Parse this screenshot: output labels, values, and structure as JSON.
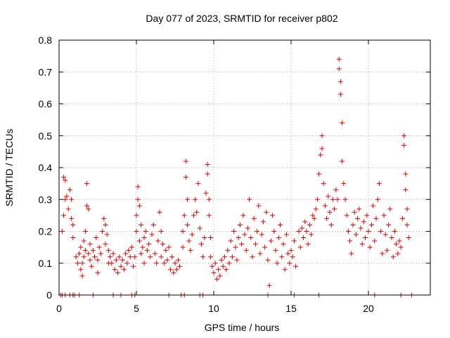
{
  "chart_data": {
    "type": "scatter",
    "title": "Day 077 of 2023, SRMTID for receiver p802",
    "xlabel": "GPS time / hours",
    "ylabel": "SRMTID / TECUs",
    "xlim": [
      0,
      24
    ],
    "ylim": [
      0,
      0.8
    ],
    "xticks": [
      0,
      5,
      10,
      15,
      20
    ],
    "xtick_labels": [
      "0",
      "5",
      "10",
      "15",
      "20"
    ],
    "yticks": [
      0,
      0.1,
      0.2,
      0.3,
      0.4,
      0.5,
      0.6,
      0.7,
      0.8
    ],
    "ytick_labels": [
      "0",
      "0.1",
      "0.2",
      "0.3",
      "0.4",
      "0.5",
      "0.6",
      "0.7",
      "0.8"
    ],
    "grid": true,
    "marker": "+",
    "marker_color": "#e00000",
    "series": [
      {
        "name": "SRMTID",
        "points": [
          [
            0.1,
            0.0
          ],
          [
            0.2,
            0.0
          ],
          [
            0.4,
            0.0
          ],
          [
            0.7,
            0.0
          ],
          [
            0.9,
            0.0
          ],
          [
            1.0,
            0.0
          ],
          [
            1.3,
            0.0
          ],
          [
            2.2,
            0.0
          ],
          [
            3.5,
            0.0
          ],
          [
            4.0,
            0.0
          ],
          [
            4.7,
            0.0
          ],
          [
            4.9,
            0.0
          ],
          [
            7.1,
            0.0
          ],
          [
            7.9,
            0.0
          ],
          [
            8.1,
            0.0
          ],
          [
            9.1,
            0.0
          ],
          [
            9.3,
            0.0
          ],
          [
            13.5,
            0.0
          ],
          [
            15.2,
            0.0
          ],
          [
            16.8,
            0.0
          ],
          [
            20.4,
            0.0
          ],
          [
            22.1,
            0.0
          ],
          [
            22.8,
            0.0
          ],
          [
            0.2,
            0.2
          ],
          [
            0.3,
            0.25
          ],
          [
            0.3,
            0.37
          ],
          [
            0.4,
            0.36
          ],
          [
            0.4,
            0.3
          ],
          [
            0.5,
            0.31
          ],
          [
            0.6,
            0.27
          ],
          [
            0.7,
            0.33
          ],
          [
            0.8,
            0.3
          ],
          [
            0.8,
            0.24
          ],
          [
            0.9,
            0.22
          ],
          [
            0.9,
            0.18
          ],
          [
            1.1,
            0.12
          ],
          [
            1.2,
            0.1
          ],
          [
            1.3,
            0.13
          ],
          [
            1.4,
            0.15
          ],
          [
            1.4,
            0.08
          ],
          [
            1.5,
            0.1
          ],
          [
            1.5,
            0.06
          ],
          [
            1.6,
            0.12
          ],
          [
            1.6,
            0.17
          ],
          [
            1.7,
            0.2
          ],
          [
            1.7,
            0.14
          ],
          [
            1.8,
            0.28
          ],
          [
            1.8,
            0.35
          ],
          [
            1.9,
            0.27
          ],
          [
            1.9,
            0.13
          ],
          [
            2.0,
            0.11
          ],
          [
            2.0,
            0.16
          ],
          [
            2.1,
            0.09
          ],
          [
            2.2,
            0.14
          ],
          [
            2.3,
            0.12
          ],
          [
            2.4,
            0.18
          ],
          [
            2.5,
            0.11
          ],
          [
            2.5,
            0.07
          ],
          [
            2.6,
            0.15
          ],
          [
            2.7,
            0.13
          ],
          [
            2.8,
            0.2
          ],
          [
            2.9,
            0.24
          ],
          [
            3.0,
            0.22
          ],
          [
            3.0,
            0.16
          ],
          [
            3.1,
            0.19
          ],
          [
            3.2,
            0.14
          ],
          [
            3.2,
            0.1
          ],
          [
            3.3,
            0.12
          ],
          [
            3.4,
            0.1
          ],
          [
            3.5,
            0.13
          ],
          [
            3.6,
            0.08
          ],
          [
            3.7,
            0.11
          ],
          [
            3.8,
            0.07
          ],
          [
            3.9,
            0.12
          ],
          [
            4.0,
            0.09
          ],
          [
            4.1,
            0.11
          ],
          [
            4.2,
            0.08
          ],
          [
            4.3,
            0.13
          ],
          [
            4.4,
            0.1
          ],
          [
            4.5,
            0.14
          ],
          [
            4.6,
            0.12
          ],
          [
            4.7,
            0.15
          ],
          [
            4.8,
            0.09
          ],
          [
            4.9,
            0.12
          ],
          [
            5.0,
            0.2
          ],
          [
            5.0,
            0.25
          ],
          [
            5.1,
            0.3
          ],
          [
            5.1,
            0.34
          ],
          [
            5.2,
            0.28
          ],
          [
            5.2,
            0.17
          ],
          [
            5.3,
            0.22
          ],
          [
            5.3,
            0.13
          ],
          [
            5.4,
            0.15
          ],
          [
            5.5,
            0.18
          ],
          [
            5.5,
            0.1
          ],
          [
            5.6,
            0.2
          ],
          [
            5.7,
            0.14
          ],
          [
            5.8,
            0.16
          ],
          [
            5.9,
            0.12
          ],
          [
            6.0,
            0.19
          ],
          [
            6.1,
            0.22
          ],
          [
            6.2,
            0.13
          ],
          [
            6.3,
            0.1
          ],
          [
            6.4,
            0.17
          ],
          [
            6.5,
            0.26
          ],
          [
            6.6,
            0.2
          ],
          [
            6.6,
            0.12
          ],
          [
            6.7,
            0.16
          ],
          [
            6.8,
            0.1
          ],
          [
            6.9,
            0.14
          ],
          [
            7.0,
            0.11
          ],
          [
            7.1,
            0.15
          ],
          [
            7.2,
            0.08
          ],
          [
            7.3,
            0.12
          ],
          [
            7.4,
            0.07
          ],
          [
            7.5,
            0.1
          ],
          [
            7.6,
            0.08
          ],
          [
            7.7,
            0.11
          ],
          [
            7.8,
            0.09
          ],
          [
            8.0,
            0.15
          ],
          [
            8.0,
            0.2
          ],
          [
            8.1,
            0.25
          ],
          [
            8.2,
            0.42
          ],
          [
            8.2,
            0.37
          ],
          [
            8.3,
            0.3
          ],
          [
            8.3,
            0.22
          ],
          [
            8.4,
            0.17
          ],
          [
            8.5,
            0.14
          ],
          [
            8.6,
            0.19
          ],
          [
            8.7,
            0.25
          ],
          [
            8.8,
            0.3
          ],
          [
            8.9,
            0.26
          ],
          [
            9.0,
            0.35
          ],
          [
            9.1,
            0.21
          ],
          [
            9.2,
            0.16
          ],
          [
            9.3,
            0.12
          ],
          [
            9.4,
            0.18
          ],
          [
            9.5,
            0.32
          ],
          [
            9.6,
            0.41
          ],
          [
            9.6,
            0.38
          ],
          [
            9.7,
            0.3
          ],
          [
            9.7,
            0.25
          ],
          [
            9.8,
            0.18
          ],
          [
            9.8,
            0.12
          ],
          [
            9.9,
            0.09
          ],
          [
            10.0,
            0.07
          ],
          [
            10.1,
            0.1
          ],
          [
            10.2,
            0.05
          ],
          [
            10.3,
            0.08
          ],
          [
            10.4,
            0.06
          ],
          [
            10.5,
            0.11
          ],
          [
            10.6,
            0.09
          ],
          [
            10.7,
            0.12
          ],
          [
            10.8,
            0.08
          ],
          [
            10.9,
            0.14
          ],
          [
            11.0,
            0.1
          ],
          [
            11.1,
            0.17
          ],
          [
            11.2,
            0.12
          ],
          [
            11.3,
            0.2
          ],
          [
            11.4,
            0.15
          ],
          [
            11.5,
            0.11
          ],
          [
            11.6,
            0.18
          ],
          [
            11.7,
            0.22
          ],
          [
            11.8,
            0.16
          ],
          [
            11.9,
            0.25
          ],
          [
            12.0,
            0.19
          ],
          [
            12.1,
            0.14
          ],
          [
            12.2,
            0.21
          ],
          [
            12.3,
            0.3
          ],
          [
            12.4,
            0.18
          ],
          [
            12.5,
            0.12
          ],
          [
            12.6,
            0.24
          ],
          [
            12.7,
            0.16
          ],
          [
            12.8,
            0.2
          ],
          [
            12.9,
            0.28
          ],
          [
            13.0,
            0.13
          ],
          [
            13.1,
            0.19
          ],
          [
            13.2,
            0.23
          ],
          [
            13.3,
            0.15
          ],
          [
            13.4,
            0.26
          ],
          [
            13.5,
            0.11
          ],
          [
            13.6,
            0.03
          ],
          [
            13.7,
            0.17
          ],
          [
            13.8,
            0.25
          ],
          [
            13.9,
            0.2
          ],
          [
            14.0,
            0.14
          ],
          [
            14.1,
            0.1
          ],
          [
            14.2,
            0.18
          ],
          [
            14.3,
            0.22
          ],
          [
            14.4,
            0.12
          ],
          [
            14.5,
            0.16
          ],
          [
            14.6,
            0.08
          ],
          [
            14.7,
            0.19
          ],
          [
            14.8,
            0.13
          ],
          [
            14.9,
            0.1
          ],
          [
            15.0,
            0.14
          ],
          [
            15.1,
            0.12
          ],
          [
            15.2,
            0.17
          ],
          [
            15.3,
            0.09
          ],
          [
            15.5,
            0.2
          ],
          [
            15.6,
            0.15
          ],
          [
            15.7,
            0.21
          ],
          [
            15.8,
            0.18
          ],
          [
            15.9,
            0.23
          ],
          [
            16.0,
            0.2
          ],
          [
            16.1,
            0.16
          ],
          [
            16.2,
            0.22
          ],
          [
            16.3,
            0.19
          ],
          [
            16.4,
            0.25
          ],
          [
            16.5,
            0.24
          ],
          [
            16.6,
            0.27
          ],
          [
            16.7,
            0.3
          ],
          [
            16.8,
            0.38
          ],
          [
            16.9,
            0.44
          ],
          [
            17.0,
            0.5
          ],
          [
            17.0,
            0.46
          ],
          [
            17.1,
            0.35
          ],
          [
            17.2,
            0.28
          ],
          [
            17.3,
            0.24
          ],
          [
            17.4,
            0.31
          ],
          [
            17.5,
            0.26
          ],
          [
            17.6,
            0.22
          ],
          [
            17.7,
            0.3
          ],
          [
            17.8,
            0.27
          ],
          [
            17.9,
            0.33
          ],
          [
            18.0,
            0.3
          ],
          [
            18.1,
            0.74
          ],
          [
            18.1,
            0.71
          ],
          [
            18.2,
            0.67
          ],
          [
            18.2,
            0.63
          ],
          [
            18.3,
            0.54
          ],
          [
            18.3,
            0.42
          ],
          [
            18.4,
            0.35
          ],
          [
            18.5,
            0.3
          ],
          [
            18.6,
            0.25
          ],
          [
            18.7,
            0.2
          ],
          [
            18.8,
            0.17
          ],
          [
            18.9,
            0.13
          ],
          [
            19.0,
            0.22
          ],
          [
            19.1,
            0.26
          ],
          [
            19.2,
            0.19
          ],
          [
            19.3,
            0.24
          ],
          [
            19.4,
            0.27
          ],
          [
            19.5,
            0.21
          ],
          [
            19.6,
            0.16
          ],
          [
            19.7,
            0.23
          ],
          [
            19.8,
            0.18
          ],
          [
            19.9,
            0.25
          ],
          [
            20.0,
            0.2
          ],
          [
            20.1,
            0.15
          ],
          [
            20.2,
            0.22
          ],
          [
            20.3,
            0.28
          ],
          [
            20.4,
            0.17
          ],
          [
            20.5,
            0.24
          ],
          [
            20.6,
            0.3
          ],
          [
            20.7,
            0.35
          ],
          [
            20.8,
            0.2
          ],
          [
            20.9,
            0.13
          ],
          [
            21.0,
            0.25
          ],
          [
            21.1,
            0.19
          ],
          [
            21.2,
            0.14
          ],
          [
            21.3,
            0.22
          ],
          [
            21.4,
            0.27
          ],
          [
            21.5,
            0.18
          ],
          [
            21.6,
            0.12
          ],
          [
            21.7,
            0.2
          ],
          [
            21.8,
            0.16
          ],
          [
            21.9,
            0.13
          ],
          [
            22.0,
            0.17
          ],
          [
            22.1,
            0.15
          ],
          [
            22.2,
            0.24
          ],
          [
            22.3,
            0.5
          ],
          [
            22.3,
            0.47
          ],
          [
            22.4,
            0.38
          ],
          [
            22.4,
            0.33
          ],
          [
            22.5,
            0.27
          ],
          [
            22.5,
            0.22
          ],
          [
            22.6,
            0.18
          ]
        ]
      }
    ]
  }
}
